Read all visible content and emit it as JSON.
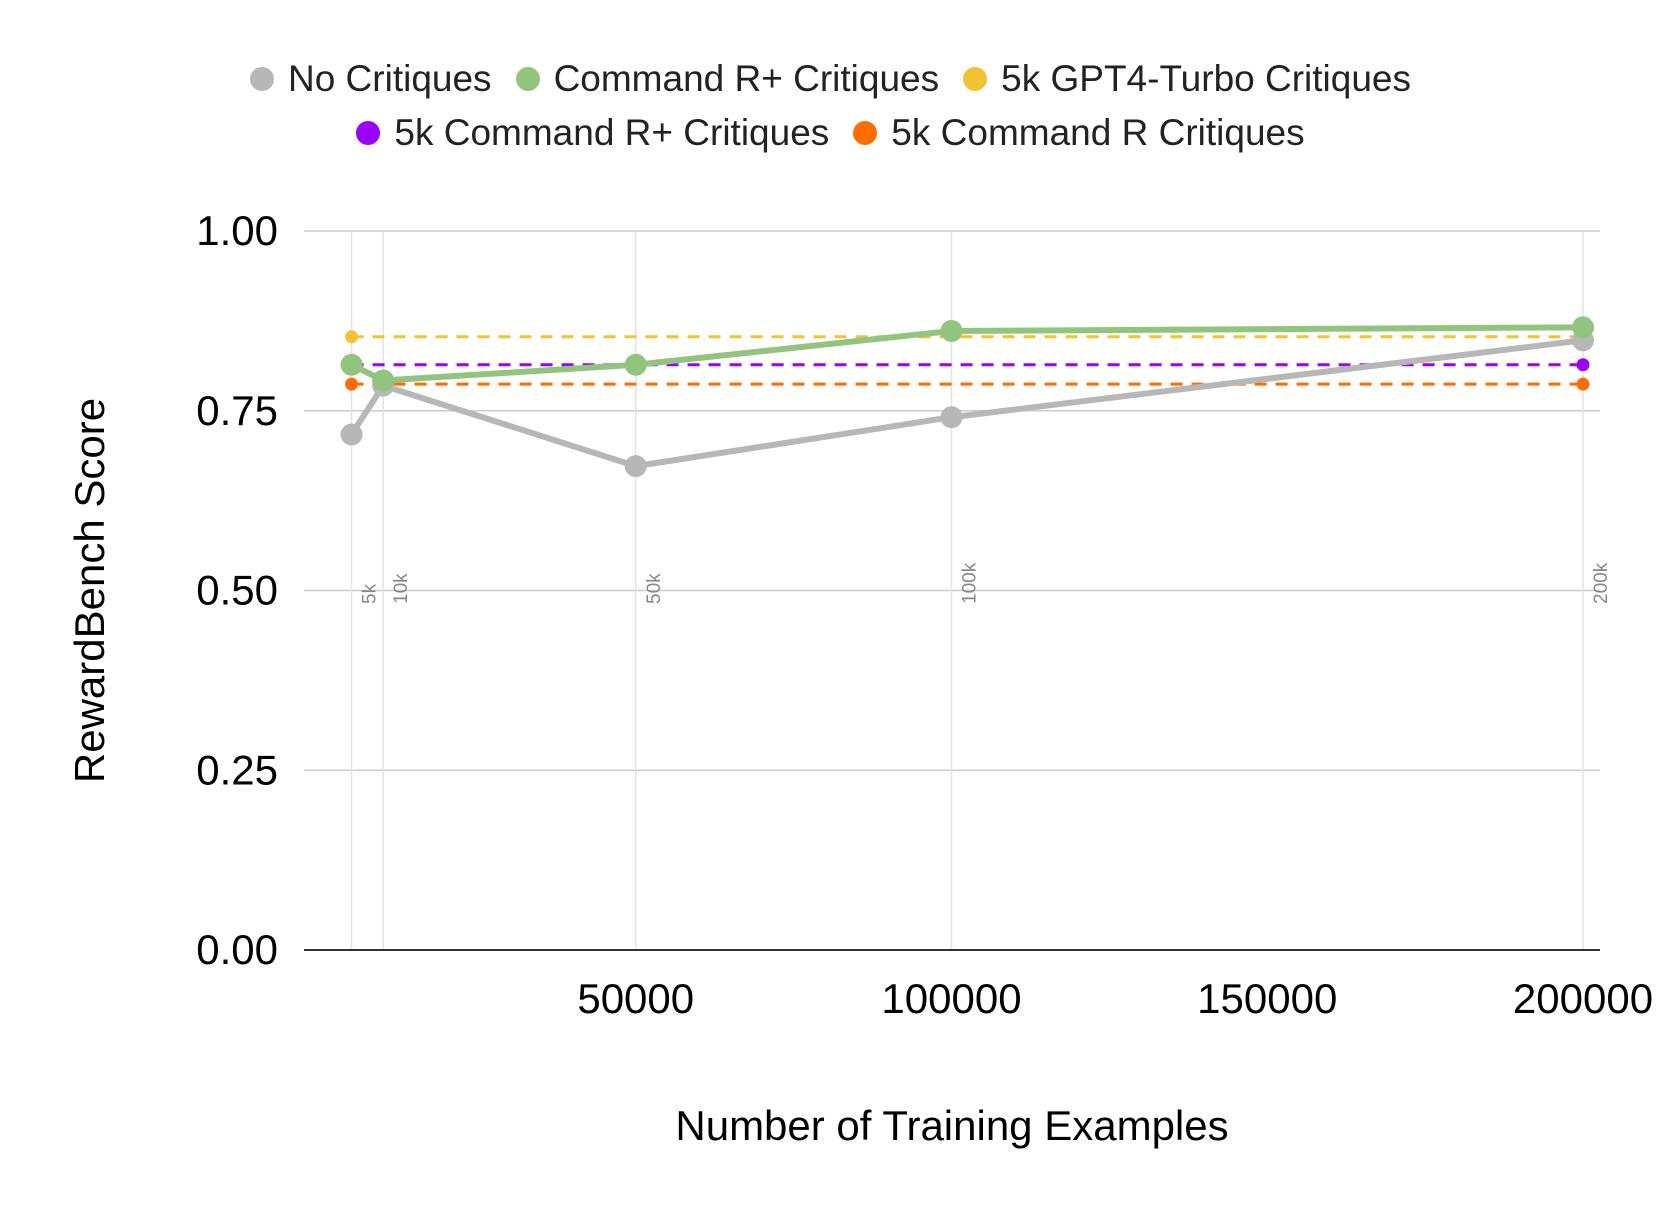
{
  "chart_data": {
    "type": "line",
    "title": "",
    "xlabel": "Number of Training Examples",
    "ylabel": "RewardBench Score",
    "xlim": [
      0,
      200000
    ],
    "ylim": [
      0,
      1
    ],
    "x_ticks": [
      "50000",
      "100000",
      "150000",
      "200000"
    ],
    "y_ticks": [
      "0.00",
      "0.25",
      "0.50",
      "0.75",
      "1.00"
    ],
    "vertical_markers": [
      {
        "x": 5000,
        "label": "5k"
      },
      {
        "x": 10000,
        "label": "10k"
      },
      {
        "x": 50000,
        "label": "50k"
      },
      {
        "x": 100000,
        "label": "100k"
      },
      {
        "x": 200000,
        "label": "200k"
      }
    ],
    "grid": true,
    "legend_position": "top",
    "series": [
      {
        "name": "No Critiques",
        "color": "#b7b7b7",
        "style": "solid",
        "x": [
          5000,
          10000,
          50000,
          100000,
          200000
        ],
        "y": [
          0.717,
          0.785,
          0.673,
          0.741,
          0.848
        ]
      },
      {
        "name": "Command R+ Critiques",
        "color": "#93c47d",
        "style": "solid",
        "x": [
          5000,
          10000,
          50000,
          100000,
          200000
        ],
        "y": [
          0.814,
          0.792,
          0.814,
          0.861,
          0.866
        ]
      },
      {
        "name": "5k GPT4-Turbo Critiques",
        "color": "#f1c232",
        "style": "dashed",
        "x": [
          5000,
          200000
        ],
        "y": [
          0.853,
          0.853
        ]
      },
      {
        "name": "5k Command R+ Critiques",
        "color": "#9900ff",
        "style": "dashed",
        "x": [
          5000,
          200000
        ],
        "y": [
          0.814,
          0.814
        ]
      },
      {
        "name": "5k Command R Critiques",
        "color": "#ff6d01",
        "style": "dashed",
        "x": [
          5000,
          200000
        ],
        "y": [
          0.787,
          0.787
        ]
      }
    ]
  }
}
